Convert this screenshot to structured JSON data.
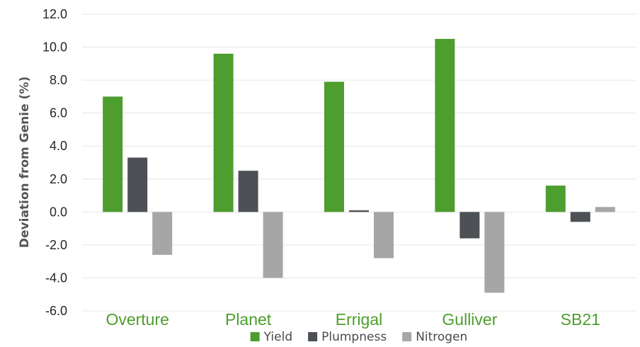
{
  "chart_data": {
    "type": "bar",
    "categories": [
      "Overture",
      "Planet",
      "Errigal",
      "Gulliver",
      "SB21"
    ],
    "series": [
      {
        "name": "Yield",
        "color": "#4e9d2f",
        "values": [
          7.0,
          9.6,
          7.9,
          10.5,
          1.6
        ]
      },
      {
        "name": "Plumpness",
        "color": "#4d5156",
        "values": [
          3.3,
          2.5,
          0.1,
          -1.6,
          -0.6
        ]
      },
      {
        "name": "Nitrogen",
        "color": "#a6a6a6",
        "values": [
          -2.6,
          -4.0,
          -2.8,
          -4.9,
          0.3
        ]
      }
    ],
    "title": "",
    "xlabel": "",
    "ylabel": "Deviation from Genie (%)",
    "ylim": [
      -6.0,
      12.0
    ],
    "yticks": [
      "12.0",
      "10.0",
      "8.0",
      "6.0",
      "4.0",
      "2.0",
      "0.0",
      "-2.0",
      "-4.0",
      "-6.0"
    ],
    "legend_position": "bottom",
    "grid": true,
    "gridline_color": "#e6e6e6",
    "category_label_color": "#4d9e2d"
  }
}
